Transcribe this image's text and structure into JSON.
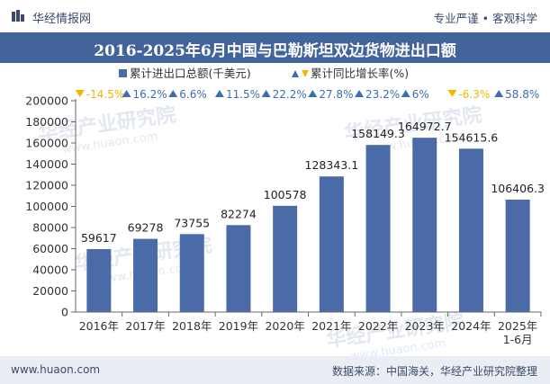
{
  "header": {
    "brand": "华经情报网",
    "tagline": "专业严谨 • 客观科学"
  },
  "chart_data": {
    "type": "bar",
    "title": "2016-2025年6月中国与巴勒斯坦双边货物进出口额",
    "categories": [
      "2016年",
      "2017年",
      "2018年",
      "2019年",
      "2020年",
      "2021年",
      "2022年",
      "2023年",
      "2024年",
      "2025年\n1-6月"
    ],
    "series": [
      {
        "name": "累计进出口总额(千美元)",
        "values": [
          59617,
          69278,
          73755,
          82274,
          100578,
          128343.1,
          158149.3,
          164972.7,
          154615.6,
          106406.3
        ],
        "labels": [
          "59617",
          "69278",
          "73755",
          "82274",
          "100578",
          "128343.1",
          "158149.3",
          "164972.7",
          "154615.6",
          "106406.3"
        ]
      },
      {
        "name": "累计同比增长率(%)",
        "values": [
          -14.5,
          16.2,
          6.6,
          11.5,
          22.2,
          27.8,
          23.2,
          6,
          -6.3,
          58.8
        ],
        "labels": [
          "-14.5%",
          "16.2%",
          "6.6%",
          "11.5%",
          "22.2%",
          "27.8%",
          "23.2%",
          "6%",
          "-6.3%",
          "58.8%"
        ]
      }
    ],
    "y_ticks": [
      "0",
      "20000",
      "40000",
      "60000",
      "80000",
      "100000",
      "120000",
      "140000",
      "160000",
      "180000",
      "200000"
    ],
    "ylim": [
      0,
      200000
    ],
    "legend_position": "top-center",
    "colors": {
      "bar": "#4a6ba8",
      "up": "#3d6db0",
      "down": "#f2b600",
      "title_bg": "#43649a",
      "footer_bg": "#e9eef5"
    }
  },
  "watermarks": [
    "华经产业研究院",
    "www.huaon.com"
  ],
  "footer": {
    "website": "www.huaon.com",
    "source": "数据来源：中国海关，华经产业研究院整理"
  }
}
